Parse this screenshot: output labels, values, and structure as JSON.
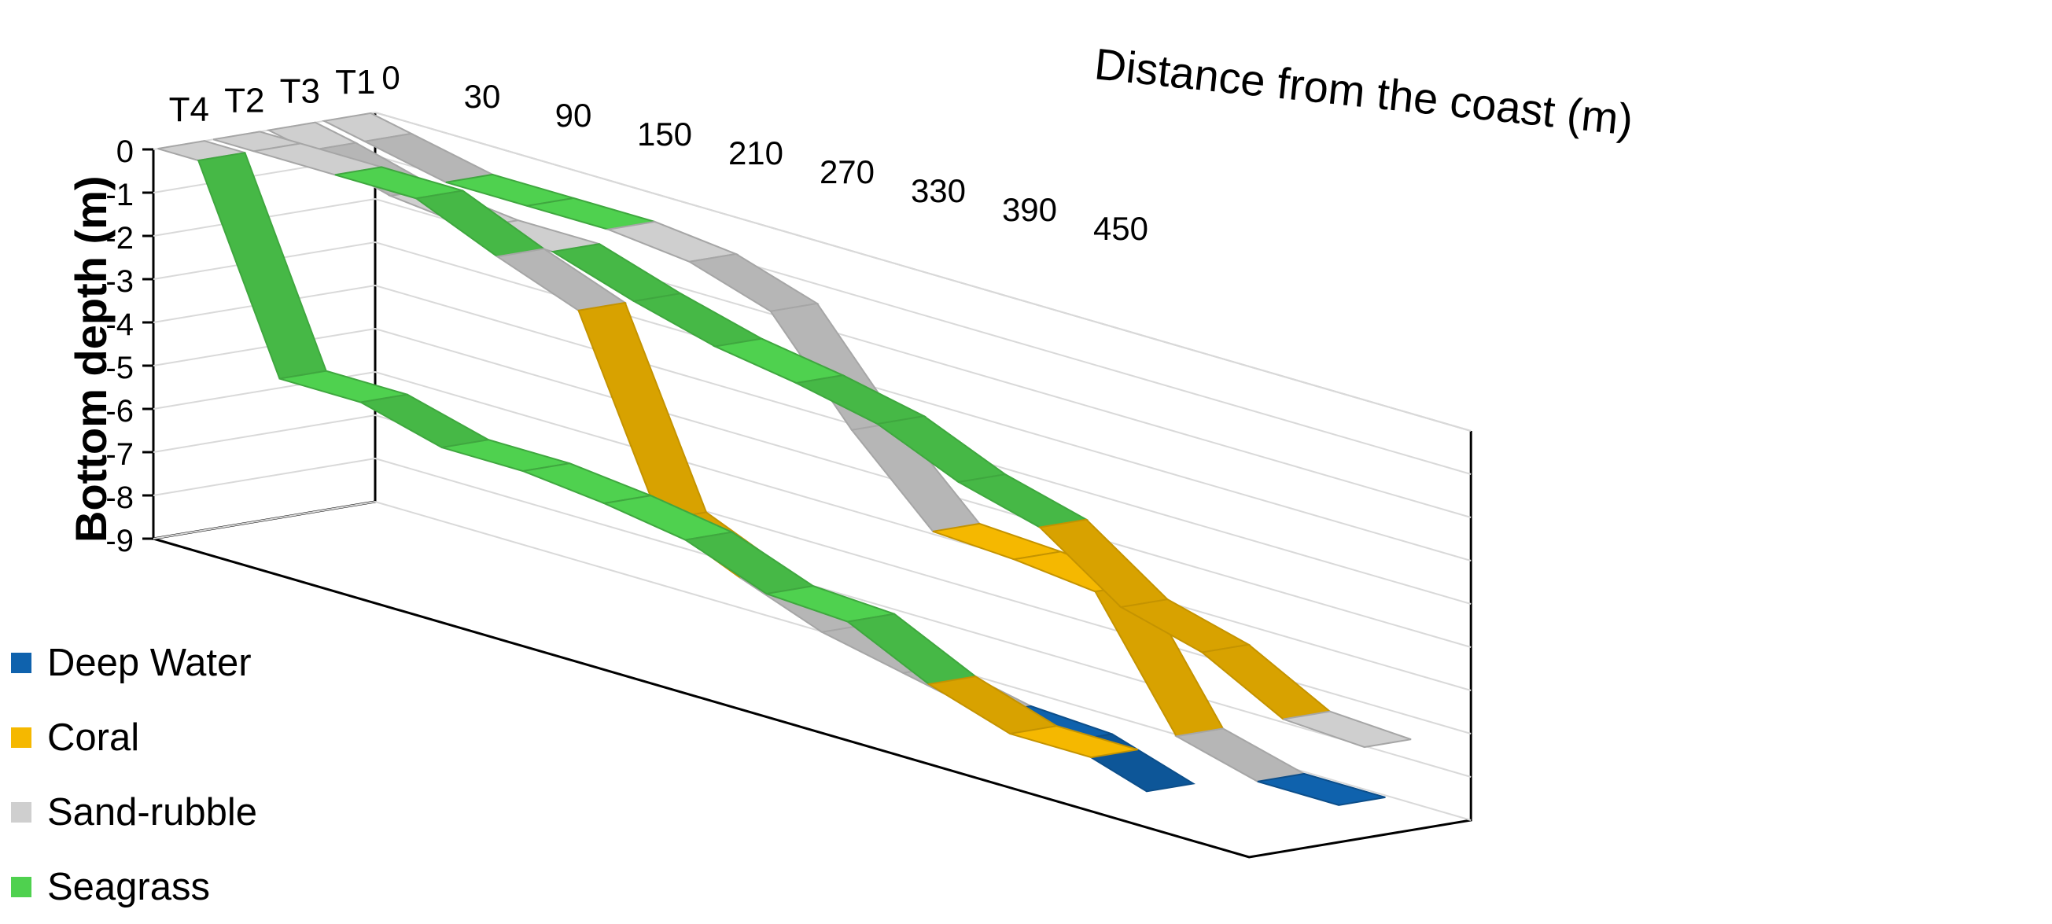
{
  "chart_data": {
    "type": "line",
    "style": "3d-ribbon",
    "xlabel": "Distance from the coast (m)",
    "ylabel": "Bottom depth (m)",
    "x_ticks": [
      "0",
      "30",
      "90",
      "150",
      "210",
      "270",
      "330",
      "390",
      "450"
    ],
    "y_ticks": [
      "0",
      "-1",
      "-2",
      "-3",
      "-4",
      "-5",
      "-6",
      "-7",
      "-8",
      "-9"
    ],
    "ylim": [
      -9,
      0
    ],
    "depth_categories": [
      "T4",
      "T2",
      "T3",
      "T1"
    ],
    "grid": true,
    "legend_position": "bottom-left",
    "legend": [
      {
        "name": "Deep Water",
        "color": "#0f62ad"
      },
      {
        "name": "Coral",
        "color": "#f5b800"
      },
      {
        "name": "Sand-rubble",
        "color": "#cfcfcf"
      },
      {
        "name": "Seagrass",
        "color": "#4fd14f"
      }
    ],
    "series": [
      {
        "name": "T4",
        "x": [
          0,
          30,
          90,
          150,
          210,
          270,
          330,
          390,
          450,
          510,
          570,
          630,
          690
        ],
        "y": [
          0,
          0,
          -4.5,
          -4.5,
          -5,
          -5,
          -5.2,
          -5.5,
          -6.2,
          -6.3,
          -7.2,
          -7.8,
          -7.8
        ],
        "classes": [
          "Sand-rubble",
          "Seagrass",
          "Seagrass",
          "Seagrass",
          "Seagrass",
          "Seagrass",
          "Seagrass",
          "Seagrass",
          "Seagrass",
          "Seagrass",
          "Coral",
          "Coral",
          "Deep Water"
        ]
      },
      {
        "name": "T2",
        "x": [
          0,
          30,
          90,
          150,
          210,
          270,
          330,
          390,
          450,
          510,
          570,
          630,
          690
        ],
        "y": [
          0,
          0,
          0,
          0,
          -0.8,
          -1.5,
          -5.8,
          -6.6,
          -7.3,
          -7.7,
          -8.1,
          -8.2,
          -8.8
        ],
        "classes": [
          "Sand-rubble",
          "Sand-rubble",
          "Seagrass",
          "Seagrass",
          "Sand-rubble",
          "Coral",
          "Coral",
          "Sand-rubble",
          "Sand-rubble",
          "Sand-rubble",
          "Deep Water",
          "Deep Water",
          "Deep Water"
        ]
      },
      {
        "name": "T3",
        "x": [
          0,
          30,
          90,
          150,
          210,
          270,
          330,
          390,
          450,
          510,
          570,
          630,
          690,
          750,
          810
        ],
        "y": [
          0,
          -0.2,
          -0.7,
          -0.9,
          -0.9,
          -1.5,
          -2.0,
          -2.3,
          -2.7,
          -3.5,
          -4.0,
          -5.3,
          -5.8,
          -6.8,
          -6.9
        ],
        "classes": [
          "Sand-rubble",
          "Sand-rubble",
          "Sand-rubble",
          "Sand-rubble",
          "Seagrass",
          "Seagrass",
          "Seagrass",
          "Seagrass",
          "Seagrass",
          "Seagrass",
          "Coral",
          "Coral",
          "Coral",
          "Sand-rubble",
          "Deep Water"
        ]
      },
      {
        "name": "T1",
        "x": [
          0,
          30,
          90,
          150,
          210,
          270,
          330,
          390,
          450,
          510,
          570,
          630,
          690,
          750
        ],
        "y": [
          0,
          -0.2,
          -0.6,
          -0.6,
          -0.6,
          -0.8,
          -1.4,
          -3.6,
          -5.4,
          -5.5,
          -5.7,
          -8.5,
          -9,
          -9
        ],
        "classes": [
          "Sand-rubble",
          "Sand-rubble",
          "Seagrass",
          "Seagrass",
          "Sand-rubble",
          "Sand-rubble",
          "Sand-rubble",
          "Sand-rubble",
          "Coral",
          "Coral",
          "Coral",
          "Sand-rubble",
          "Deep Water",
          "Deep Water"
        ]
      }
    ]
  }
}
